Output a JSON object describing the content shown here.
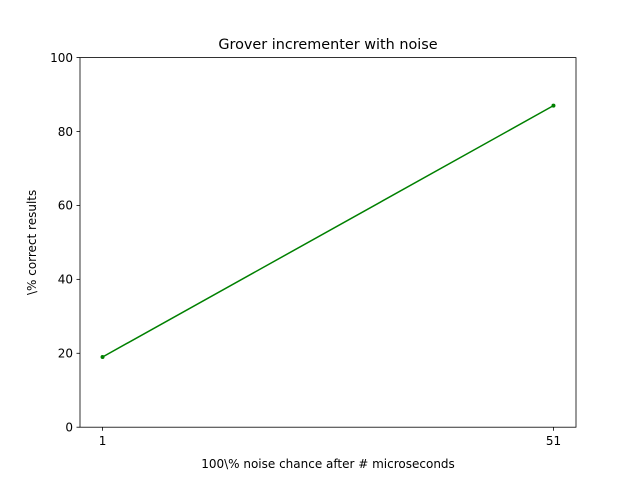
{
  "chart_data": {
    "type": "line",
    "title": "Grover incrementer with noise",
    "xlabel": "100\\% noise chance after # microseconds",
    "ylabel": "\\% correct results",
    "xlim": [
      -1.5,
      53.5
    ],
    "ylim": [
      0,
      100
    ],
    "xticks": [
      1,
      51
    ],
    "yticks": [
      0,
      20,
      40,
      60,
      80,
      100
    ],
    "grid": false,
    "legend": "none",
    "series": [
      {
        "color": "#008000",
        "x": [
          1,
          51
        ],
        "y": [
          19,
          87
        ]
      }
    ]
  }
}
